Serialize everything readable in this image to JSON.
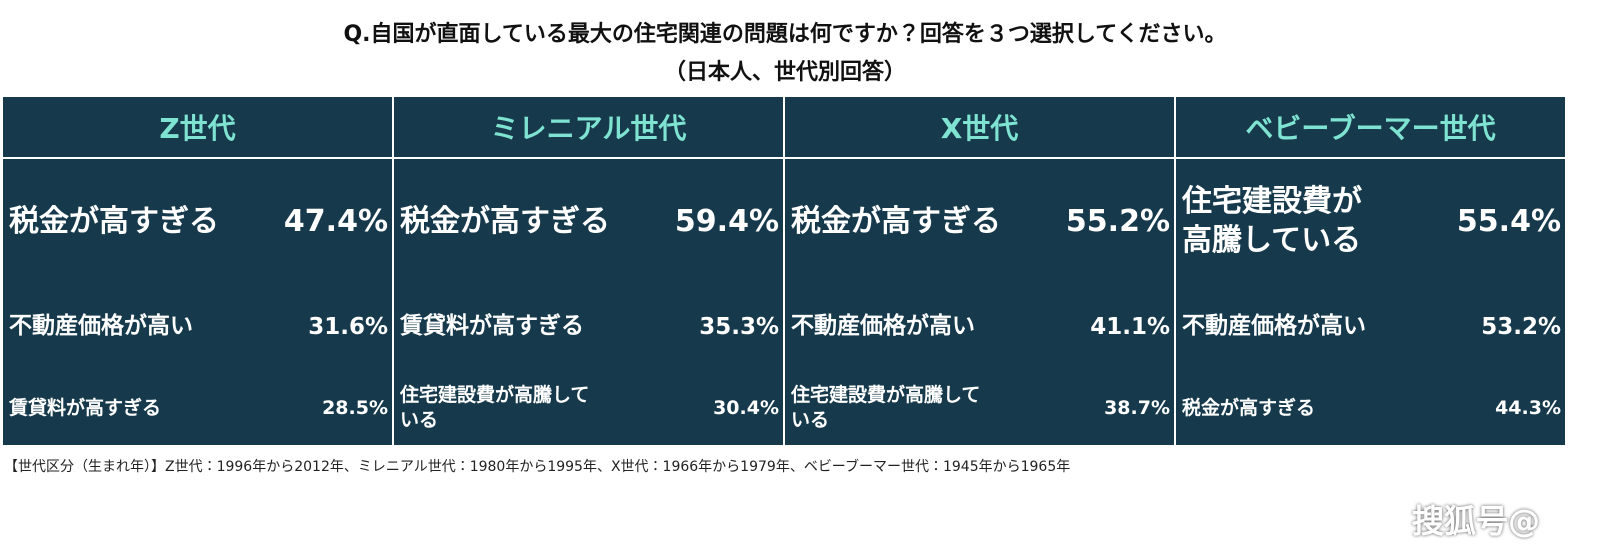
{
  "header": {
    "title": "Q.自国が直面している最大の住宅関連の問題は何ですか？回答を３つ選択してください。",
    "subtitle": "（日本人、世代別回答）"
  },
  "table": {
    "columns": [
      {
        "header": "Z世代",
        "items": [
          {
            "label": "税金が高すぎる",
            "value": "47.4%"
          },
          {
            "label": "不動産価格が高い",
            "value": "31.6%"
          },
          {
            "label": "賃貸料が高すぎる",
            "value": "28.5%"
          }
        ]
      },
      {
        "header": "ミレニアル世代",
        "items": [
          {
            "label": "税金が高すぎる",
            "value": "59.4%"
          },
          {
            "label": "賃貸料が高すぎる",
            "value": "35.3%"
          },
          {
            "label": "住宅建設費が高騰している",
            "value": "30.4%"
          }
        ]
      },
      {
        "header": "X世代",
        "items": [
          {
            "label": "税金が高すぎる",
            "value": "55.2%"
          },
          {
            "label": "不動産価格が高い",
            "value": "41.1%"
          },
          {
            "label": "住宅建設費が高騰している",
            "value": "38.7%"
          }
        ]
      },
      {
        "header": "ベビーブーマー世代",
        "items": [
          {
            "label": "住宅建設費が高騰している",
            "value": "55.4%"
          },
          {
            "label": "不動産価格が高い",
            "value": "53.2%"
          },
          {
            "label": "税金が高すぎる",
            "value": "44.3%"
          }
        ]
      }
    ]
  },
  "footnote": "【世代区分（生まれ年）】Z世代：1996年から2012年、ミレニアル世代：1980年から1995年、X世代：1966年から1979年、ベビーブーマー世代：1945年から1965年",
  "watermark": "搜狐号@"
}
